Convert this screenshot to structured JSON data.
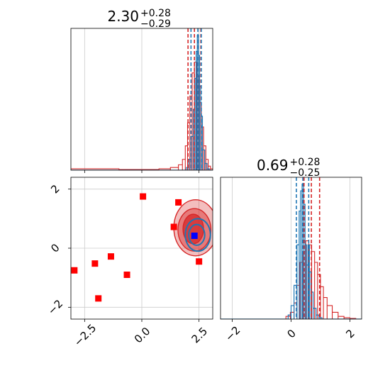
{
  "chart_data": {
    "type": "scatter",
    "description_type": "corner",
    "colors": {
      "red": "#d62728",
      "blue": "#1f77b4",
      "marker_red": "#ff0000",
      "marker_blue": "#0000ff"
    },
    "grid": true,
    "panels": [
      {
        "id": "hist-param1",
        "type": "histogram",
        "title_value": "2.30",
        "title_plus": "+0.28",
        "title_minus": "−0.29",
        "xlim": [
          -3.1,
          3.1
        ],
        "x_ticks_labels": [],
        "red_quantiles": [
          2.02,
          2.3,
          2.58
        ],
        "blue_quantiles": [
          2.15,
          2.45,
          2.6
        ],
        "red_hist": {
          "x": [
            -2.5,
            0.5,
            1.0,
            1.5,
            1.7,
            1.85,
            1.95,
            2.05,
            2.15,
            2.25,
            2.35,
            2.45,
            2.55,
            2.65,
            2.75,
            2.85,
            2.95,
            3.05
          ],
          "y": [
            0.01,
            0.005,
            0.01,
            0.02,
            0.04,
            0.08,
            0.18,
            0.35,
            0.55,
            0.72,
            0.8,
            0.7,
            0.5,
            0.32,
            0.18,
            0.08,
            0.03,
            0.01
          ]
        },
        "blue_hist": {
          "x": [
            2.0,
            2.1,
            2.2,
            2.3,
            2.35,
            2.4,
            2.45,
            2.5,
            2.55,
            2.6,
            2.7,
            2.8,
            2.9
          ],
          "y": [
            0.02,
            0.08,
            0.25,
            0.45,
            0.68,
            0.88,
            1.0,
            0.85,
            0.62,
            0.4,
            0.15,
            0.05,
            0.01
          ]
        }
      },
      {
        "id": "hist-param2",
        "type": "histogram",
        "title_value": "0.69",
        "title_plus": "+0.28",
        "title_minus": "−0.25",
        "xlim": [
          -2.4,
          2.4
        ],
        "x_ticks": [
          -2,
          0,
          2
        ],
        "x_tick_labels": [
          "−2",
          "0",
          "2"
        ],
        "red_quantiles": [
          0.44,
          0.69,
          0.97
        ],
        "blue_quantiles": [
          0.18,
          0.4,
          0.6
        ],
        "red_hist": {
          "x": [
            -0.1,
            0.05,
            0.15,
            0.25,
            0.35,
            0.45,
            0.55,
            0.65,
            0.75,
            0.85,
            0.95,
            1.05,
            1.15,
            1.3,
            1.5,
            1.7,
            1.9,
            2.1
          ],
          "y": [
            0.02,
            0.05,
            0.12,
            0.25,
            0.42,
            0.5,
            0.58,
            0.55,
            0.5,
            0.42,
            0.33,
            0.24,
            0.16,
            0.1,
            0.05,
            0.02,
            0.01,
            0.005
          ]
        },
        "blue_hist": {
          "x": [
            -0.05,
            0.05,
            0.15,
            0.25,
            0.3,
            0.35,
            0.4,
            0.45,
            0.5,
            0.55,
            0.6,
            0.65,
            0.7,
            0.8,
            0.9,
            1.0
          ],
          "y": [
            0.03,
            0.1,
            0.25,
            0.55,
            0.8,
            0.95,
            1.0,
            0.85,
            0.55,
            0.4,
            0.55,
            0.35,
            0.2,
            0.08,
            0.03,
            0.01
          ]
        }
      },
      {
        "id": "scatter-2d",
        "type": "scatter",
        "xlim": [
          -3.1,
          3.1
        ],
        "ylim": [
          -2.4,
          2.4
        ],
        "x_ticks": [
          -2.5,
          0.0,
          2.5
        ],
        "x_tick_labels": [
          "−2.5",
          "0.0",
          "2.5"
        ],
        "y_ticks": [
          -2,
          0,
          2
        ],
        "y_tick_labels": [
          "−2",
          "0",
          "2"
        ],
        "red_squares": [
          {
            "x": 0.05,
            "y": 1.75
          },
          {
            "x": 1.6,
            "y": 1.55
          },
          {
            "x": 1.4,
            "y": 0.72
          },
          {
            "x": 2.5,
            "y": -0.45
          },
          {
            "x": -1.35,
            "y": -0.28
          },
          {
            "x": -2.05,
            "y": -0.52
          },
          {
            "x": -0.65,
            "y": -0.9
          },
          {
            "x": -2.95,
            "y": -0.75
          },
          {
            "x": -1.9,
            "y": -1.7
          }
        ],
        "blue_square": {
          "x": 2.3,
          "y": 0.42
        },
        "red_contours": [
          {
            "cx": 2.35,
            "cy": 0.69,
            "rx": 0.95,
            "ry": 0.95,
            "opacity": 0.3
          },
          {
            "cx": 2.3,
            "cy": 0.62,
            "rx": 0.72,
            "ry": 0.72,
            "opacity": 0.45
          },
          {
            "cx": 2.25,
            "cy": 0.65,
            "rx": 0.45,
            "ry": 0.5,
            "opacity": 0.75
          }
        ],
        "blue_contours": [
          {
            "cx": 2.45,
            "cy": 0.45,
            "rx": 0.55,
            "ry": 0.55
          },
          {
            "cx": 2.4,
            "cy": 0.45,
            "rx": 0.35,
            "ry": 0.35
          }
        ]
      }
    ]
  }
}
